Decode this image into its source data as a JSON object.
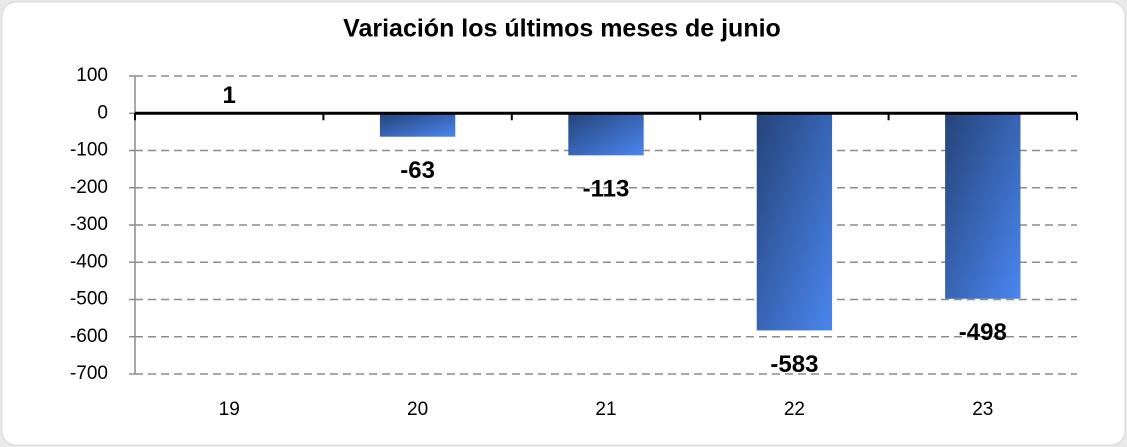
{
  "chart_data": {
    "type": "bar",
    "title": "Variación los últimos meses de junio",
    "categories": [
      "19",
      "20",
      "21",
      "22",
      "23"
    ],
    "values": [
      1,
      -63,
      -113,
      -583,
      -498
    ],
    "color": "#4a86f0",
    "ylim": [
      -700,
      100
    ],
    "yticks": [
      100,
      0,
      -100,
      -200,
      -300,
      -400,
      -500,
      -600,
      -700
    ],
    "grid": true
  }
}
